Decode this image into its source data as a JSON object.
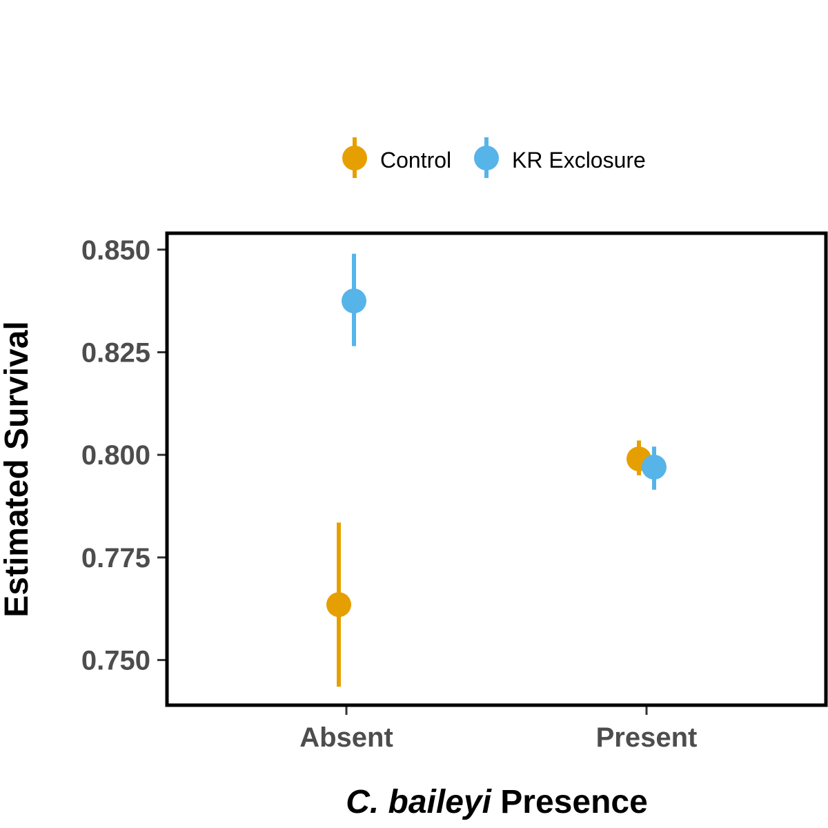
{
  "chart_data": {
    "type": "scatter",
    "subtype": "point-range",
    "categories": [
      "Absent",
      "Present"
    ],
    "xlabel_italic": "C. baileyi",
    "xlabel_rest": "Presence",
    "ylabel": "Estimated Survival",
    "ylim": [
      0.739,
      0.854
    ],
    "yticks": [
      0.75,
      0.775,
      0.8,
      0.825,
      0.85
    ],
    "ytick_labels": [
      "0.750",
      "0.775",
      "0.800",
      "0.825",
      "0.850"
    ],
    "grid": false,
    "legend_position": "top",
    "series": [
      {
        "name": "Control",
        "color": "#E69F00",
        "points": [
          {
            "category": "Absent",
            "estimate": 0.7635,
            "lower": 0.7435,
            "upper": 0.7835
          },
          {
            "category": "Present",
            "estimate": 0.799,
            "lower": 0.795,
            "upper": 0.8035
          }
        ]
      },
      {
        "name": "KR Exclosure",
        "color": "#56B4E9",
        "points": [
          {
            "category": "Absent",
            "estimate": 0.8375,
            "lower": 0.8265,
            "upper": 0.849
          },
          {
            "category": "Present",
            "estimate": 0.797,
            "lower": 0.7915,
            "upper": 0.802
          }
        ]
      }
    ]
  }
}
